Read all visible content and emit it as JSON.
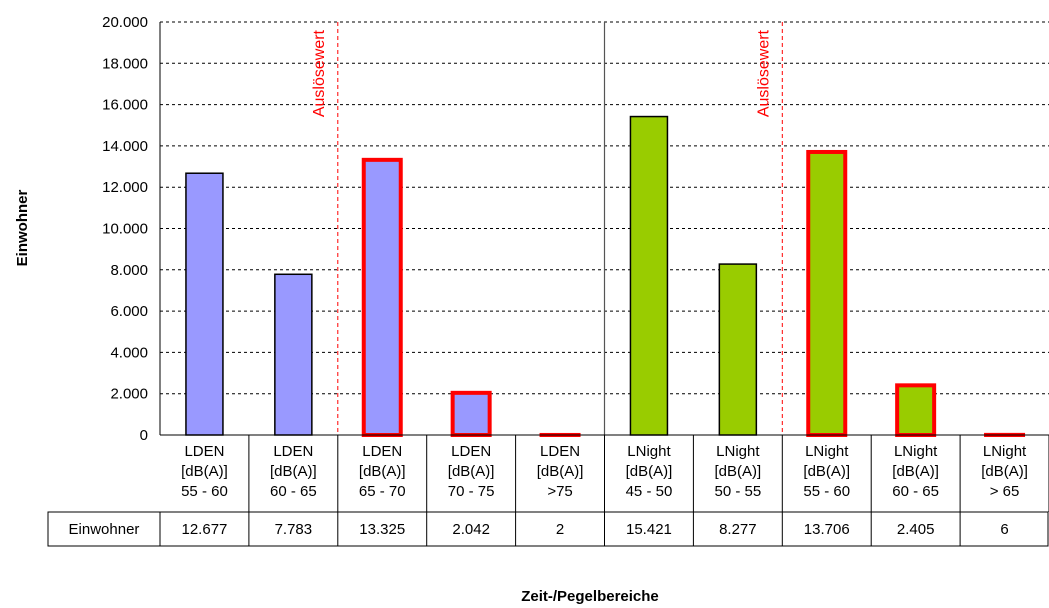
{
  "chart_data": {
    "type": "bar",
    "categories": [
      [
        "LDEN",
        "[dB(A)]",
        "55 - 60"
      ],
      [
        "LDEN",
        "[dB(A)]",
        "60 - 65"
      ],
      [
        "LDEN",
        "[dB(A)]",
        "65 - 70"
      ],
      [
        "LDEN",
        "[dB(A)]",
        "70 - 75"
      ],
      [
        "LDEN",
        "[dB(A)]",
        ">75"
      ],
      [
        "LNight",
        "[dB(A)]",
        "45 - 50"
      ],
      [
        "LNight",
        "[dB(A)]",
        "50 - 55"
      ],
      [
        "LNight",
        "[dB(A)]",
        "55 - 60"
      ],
      [
        "LNight",
        "[dB(A)]",
        "60 - 65"
      ],
      [
        "LNight",
        "[dB(A)]",
        "> 65"
      ]
    ],
    "series": [
      {
        "name": "Einwohner",
        "values": [
          12677,
          7783,
          13325,
          2042,
          2,
          15421,
          8277,
          13706,
          2405,
          6
        ],
        "labels": [
          "12.677",
          "7.783",
          "13.325",
          "2.042",
          "2",
          "15.421",
          "8.277",
          "13.706",
          "2.405",
          "6"
        ]
      }
    ],
    "bar_fill_colors": [
      "#9999ff",
      "#9999ff",
      "#9999ff",
      "#9999ff",
      "#9999ff",
      "#99cc00",
      "#99cc00",
      "#99cc00",
      "#99cc00",
      "#99cc00"
    ],
    "bar_outline_colors": [
      "#000000",
      "#000000",
      "#ff0000",
      "#ff0000",
      "#ff0000",
      "#000000",
      "#000000",
      "#ff0000",
      "#ff0000",
      "#ff0000"
    ],
    "ylabel": "Einwohner",
    "xlabel": "Zeit-/Pegelbereiche",
    "ylim": [
      0,
      20000
    ],
    "yticks": [
      "0",
      "2.000",
      "4.000",
      "6.000",
      "8.000",
      "10.000",
      "12.000",
      "14.000",
      "16.000",
      "18.000",
      "20.000"
    ],
    "grid": "horizontal dashed",
    "data_table": true,
    "annotations": [
      "Auslösewert",
      "Auslösewert"
    ],
    "threshold_color": "#ff0000"
  }
}
